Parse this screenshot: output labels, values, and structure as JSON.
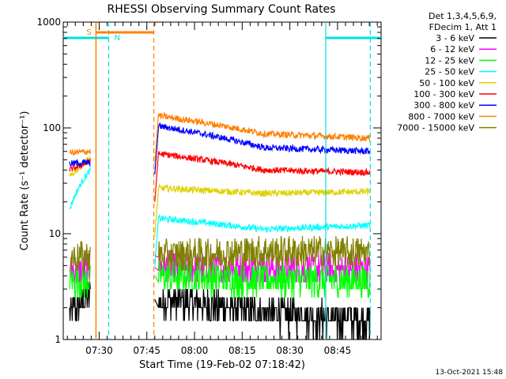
{
  "chart_data": {
    "type": "line",
    "title": "RHESSI Observing Summary Count Rates",
    "xlabel": "Start Time (19-Feb-02 07:18:42)",
    "ylabel": "Count Rate (s⁻¹ detector⁻¹)",
    "yscale": "log",
    "ylim": [
      1,
      1000
    ],
    "xlim_minutes_after_0718": [
      0,
      100
    ],
    "x_ticks": [
      {
        "label": "07:30",
        "min": 11.3
      },
      {
        "label": "07:45",
        "min": 26.3
      },
      {
        "label": "08:00",
        "min": 41.3
      },
      {
        "label": "08:15",
        "min": 56.3
      },
      {
        "label": "08:30",
        "min": 71.3
      },
      {
        "label": "08:45",
        "min": 86.3
      }
    ],
    "y_tick_labels": [
      "1",
      "10",
      "100",
      "1000"
    ],
    "legend_header": [
      "Det 1,3,4,5,6,9,",
      "FDecim 1, Att 1"
    ],
    "legend_position": "right",
    "timestamp": "13-Oct-2021 15:48",
    "markers": {
      "saa": {
        "label": "S",
        "color": "#ff8000",
        "start": 10.3,
        "end": 28.5
      },
      "night": {
        "label": "N",
        "color": "#00e0e0",
        "start": 14.3,
        "end": 82.6
      }
    },
    "series": [
      {
        "name": "3 - 6 keV",
        "color": "#000000",
        "seg1": [
          1.8,
          2.6
        ],
        "seg2": [
          2.4,
          1.8,
          1.5
        ]
      },
      {
        "name": "6 - 12 keV",
        "color": "#ff00ff",
        "seg1": [
          4.5,
          4.5
        ],
        "seg2": [
          4.8,
          4.7,
          4.6
        ]
      },
      {
        "name": "12 - 25 keV",
        "color": "#00ff00",
        "seg1": [
          3.6,
          3.6
        ],
        "seg2": [
          4.0,
          3.7,
          3.6
        ]
      },
      {
        "name": "25 - 50 keV",
        "color": "#00ffff",
        "seg1": [
          17,
          40
        ],
        "seg2": [
          14,
          11,
          12
        ]
      },
      {
        "name": "50 - 100 keV",
        "color": "#e0d000",
        "seg1": [
          34,
          52
        ],
        "seg2": [
          27,
          24,
          25
        ]
      },
      {
        "name": "100 - 300 keV",
        "color": "#ff0000",
        "seg1": [
          40,
          48
        ],
        "seg2": [
          57,
          40,
          38
        ]
      },
      {
        "name": "300 - 800 keV",
        "color": "#0000ff",
        "seg1": [
          46,
          47
        ],
        "seg2": [
          104,
          65,
          60
        ]
      },
      {
        "name": "800 - 7000 keV",
        "color": "#ff8000",
        "seg1": [
          58,
          60
        ],
        "seg2": [
          130,
          88,
          80
        ]
      },
      {
        "name": "7000 - 15000 keV",
        "color": "#808000",
        "seg1": [
          6.0,
          6.0
        ],
        "seg2": [
          6.2,
          6.8,
          6.6
        ]
      }
    ]
  }
}
